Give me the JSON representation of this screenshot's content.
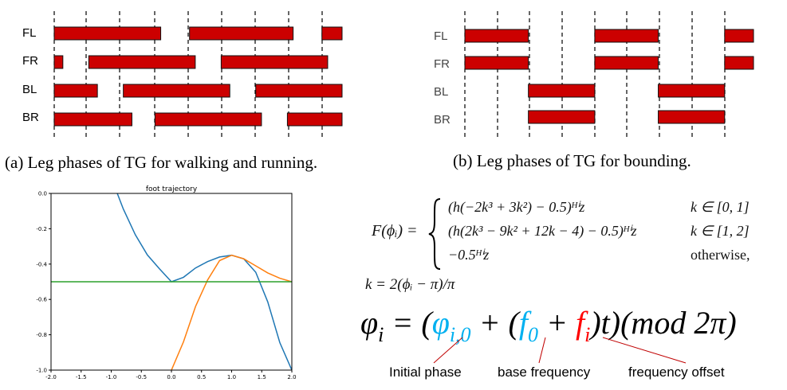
{
  "figure_a": {
    "rows": [
      {
        "label": "FL",
        "bars": [
          [
            0.0,
            0.37
          ],
          [
            0.47,
            0.83
          ],
          [
            0.93,
            1.0
          ]
        ]
      },
      {
        "label": "FR",
        "bars": [
          [
            0.0,
            0.03
          ],
          [
            0.12,
            0.49
          ],
          [
            0.58,
            0.95
          ]
        ]
      },
      {
        "label": "BL",
        "bars": [
          [
            0.0,
            0.15
          ],
          [
            0.24,
            0.61
          ],
          [
            0.7,
            1.0
          ]
        ]
      },
      {
        "label": "BR",
        "bars": [
          [
            0.0,
            0.27
          ],
          [
            0.35,
            0.72
          ],
          [
            0.81,
            1.0
          ]
        ]
      }
    ],
    "caption": "(a) Leg phases of TG for walking and running.",
    "bar_color": "#cc0000"
  },
  "figure_b": {
    "rows": [
      {
        "label": "FL",
        "bars": [
          [
            0.0,
            0.22
          ],
          [
            0.45,
            0.67
          ],
          [
            0.9,
            1.0
          ]
        ]
      },
      {
        "label": "FR",
        "bars": [
          [
            0.0,
            0.22
          ],
          [
            0.45,
            0.67
          ],
          [
            0.9,
            1.0
          ]
        ]
      },
      {
        "label": "BL",
        "bars": [
          [
            0.22,
            0.45
          ],
          [
            0.67,
            0.9
          ]
        ]
      },
      {
        "label": "BR",
        "bars": [
          [
            0.22,
            0.45
          ],
          [
            0.67,
            0.9
          ]
        ]
      }
    ],
    "caption": "(b) Leg phases of TG for bounding.",
    "bar_color": "#cc0000"
  },
  "chart_data": {
    "type": "line",
    "title": "foot trajectory",
    "xlabel": "",
    "ylabel": "",
    "xlim": [
      -2.0,
      2.0
    ],
    "ylim": [
      -1.0,
      0.0
    ],
    "xticks": [
      "-2.0",
      "-1.5",
      "-1.0",
      "-0.5",
      "0.0",
      "0.5",
      "1.0",
      "1.5",
      "2.0"
    ],
    "yticks": [
      "0.0",
      "-0.2",
      "-0.4",
      "-0.6",
      "-0.8",
      "-1.0"
    ],
    "grid": false,
    "series": [
      {
        "color": "#1f77b4",
        "x": [
          -0.9,
          -0.8,
          -0.6,
          -0.4,
          -0.2,
          0.0,
          0.2,
          0.4,
          0.6,
          0.8,
          1.0,
          1.2,
          1.4,
          1.6,
          1.8,
          2.0
        ],
        "y": [
          0.0,
          -0.088,
          -0.234,
          -0.348,
          -0.426,
          -0.5,
          -0.475,
          -0.422,
          -0.386,
          -0.36,
          -0.35,
          -0.37,
          -0.446,
          -0.614,
          -0.844,
          -1.0
        ]
      },
      {
        "color": "#ff7f0e",
        "x": [
          0.0,
          0.2,
          0.4,
          0.6,
          0.8,
          1.0,
          1.2,
          1.4,
          1.6,
          1.8,
          2.0
        ],
        "y": [
          -1.0,
          -0.84,
          -0.64,
          -0.49,
          -0.38,
          -0.35,
          -0.37,
          -0.41,
          -0.45,
          -0.48,
          -0.5
        ]
      },
      {
        "color": "#2ca02c",
        "x": [
          -2.0,
          2.0
        ],
        "y": [
          -0.5,
          -0.5
        ]
      }
    ]
  },
  "equation": {
    "lhs": "F(ϕᵢ) =",
    "cases": [
      {
        "expr": "(h(−2k³ + 3k²) − 0.5)ᴴⁱz",
        "cond": "k ∈ [0, 1]"
      },
      {
        "expr": "(h(2k³ − 9k² + 12k − 4) − 0.5)ᴴⁱz",
        "cond": "k ∈ [1, 2]"
      },
      {
        "expr": "−0.5ᴴⁱz",
        "cond": "otherwise,"
      }
    ],
    "k_def": "k = 2(ϕᵢ − π)/π"
  },
  "big_equation": {
    "parts": [
      {
        "text": "φ",
        "color": "#000000"
      },
      {
        "text": "i",
        "color": "#000000",
        "sub": true
      },
      {
        "text": " = (",
        "color": "#000000"
      },
      {
        "text": "φ",
        "color": "#00b0f0"
      },
      {
        "text": "i,0",
        "color": "#00b0f0",
        "sub": true
      },
      {
        "text": " + (",
        "color": "#000000"
      },
      {
        "text": "f",
        "color": "#00b0f0"
      },
      {
        "text": "0",
        "color": "#00b0f0",
        "sub": true
      },
      {
        "text": " + ",
        "color": "#000000"
      },
      {
        "text": "f",
        "color": "#ff0000"
      },
      {
        "text": "i",
        "color": "#ff0000",
        "sub": true
      },
      {
        "text": ")t)(mod 2π)",
        "color": "#000000"
      }
    ]
  },
  "annotations": {
    "initial_phase": "Initial phase",
    "base_frequency": "base frequency",
    "frequency_offset": "frequency offset"
  }
}
